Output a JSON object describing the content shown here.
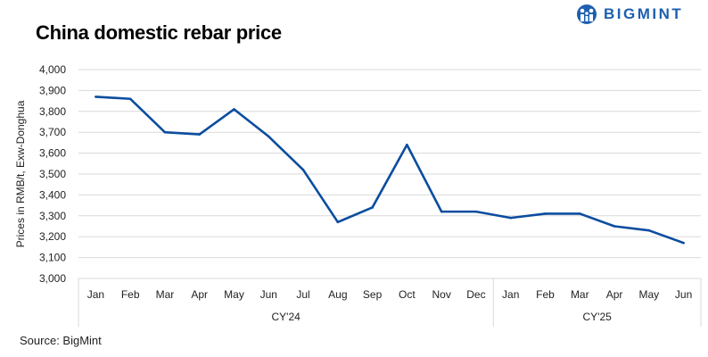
{
  "brand": {
    "name": "BIGMINT",
    "color": "#1d5fb0"
  },
  "source": "Source: BigMint",
  "chart_data": {
    "type": "line",
    "title": "China domestic rebar price",
    "ylabel": "Prices in RMB/t, Exw-Donghua",
    "xlabel": "",
    "ylim": [
      3000,
      4000
    ],
    "yticks": [
      "3,000",
      "3,100",
      "3,200",
      "3,300",
      "3,400",
      "3,500",
      "3,600",
      "3,700",
      "3,800",
      "3,900",
      "4,000"
    ],
    "ytick_values": [
      3000,
      3100,
      3200,
      3300,
      3400,
      3500,
      3600,
      3700,
      3800,
      3900,
      4000
    ],
    "grid": true,
    "categories": [
      "Jan",
      "Feb",
      "Mar",
      "Apr",
      "May",
      "Jun",
      "Jul",
      "Aug",
      "Sep",
      "Oct",
      "Nov",
      "Dec",
      "Jan",
      "Feb",
      "Mar",
      "Apr",
      "May",
      "Jun"
    ],
    "groups": [
      {
        "label": "CY'24",
        "count": 12
      },
      {
        "label": "CY'25",
        "count": 6
      }
    ],
    "series": [
      {
        "values": [
          3870,
          3860,
          3700,
          3690,
          3810,
          3680,
          3520,
          3270,
          3340,
          3640,
          3320,
          3320,
          3290,
          3310,
          3310,
          3250,
          3230,
          3170
        ],
        "color": "#0b4d9f"
      }
    ]
  }
}
